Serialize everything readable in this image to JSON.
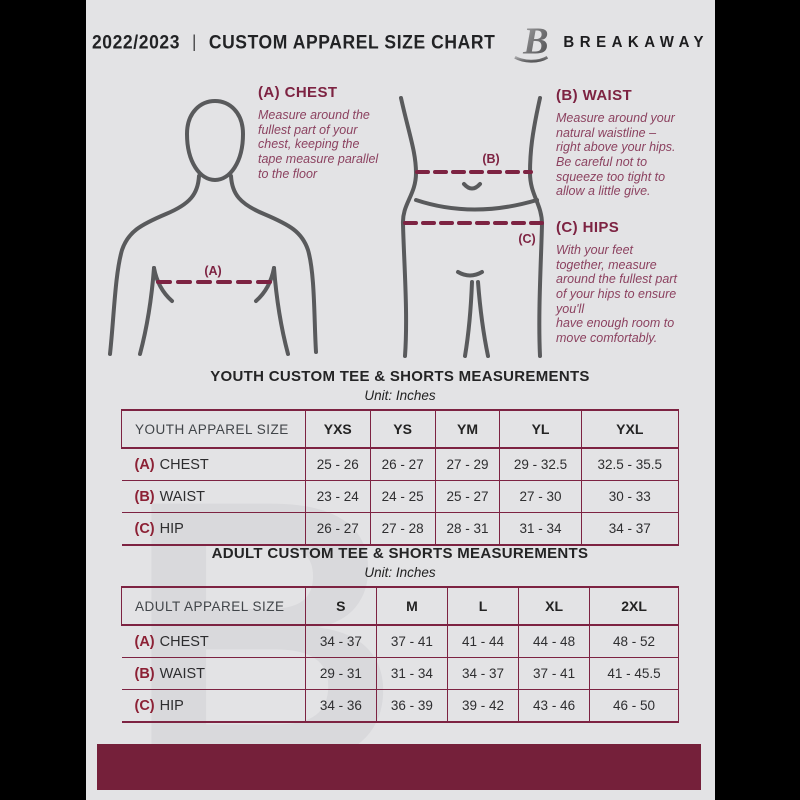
{
  "header": {
    "season": "2022/2023",
    "divider": "|",
    "title": "CUSTOM APPAREL SIZE CHART",
    "brand": "BREAKAWAY",
    "logo_letter": "B"
  },
  "guide": {
    "chest": {
      "heading": "(A) CHEST",
      "body": "Measure around the\nfullest part of your\nchest, keeping the\ntape measure parallel\nto the floor",
      "marker": "(A)"
    },
    "waist": {
      "heading": "(B) WAIST",
      "body": "Measure around your\nnatural waistline –\nright above your hips.\nBe careful not to\nsqueeze too tight to\nallow a little give.",
      "marker": "(B)"
    },
    "hips": {
      "heading": "(C) HIPS",
      "body": "With your feet\ntogether, measure\naround the fullest part\nof your hips to ensure\nyou'll\nhave enough room to\nmove comfortably.",
      "marker": "(C)"
    }
  },
  "youth": {
    "title": "YOUTH CUSTOM TEE & SHORTS MEASUREMENTS",
    "unit": "Unit: Inches",
    "header": [
      "YOUTH APPAREL SIZE",
      "YXS",
      "YS",
      "YM",
      "YL",
      "YXL"
    ],
    "rows": [
      {
        "prefix": "(A)",
        "label": "CHEST",
        "values": [
          "25 - 26",
          "26 - 27",
          "27 - 29",
          "29 - 32.5",
          "32.5 - 35.5"
        ]
      },
      {
        "prefix": "(B)",
        "label": "WAIST",
        "values": [
          "23 - 24",
          "24 - 25",
          "25 - 27",
          "27 - 30",
          "30 - 33"
        ]
      },
      {
        "prefix": "(C)",
        "label": "HIP",
        "values": [
          "26 - 27",
          "27 - 28",
          "28 - 31",
          "31 - 34",
          "34 - 37"
        ]
      }
    ]
  },
  "adult": {
    "title": "ADULT CUSTOM TEE & SHORTS MEASUREMENTS",
    "unit": "Unit: Inches",
    "header": [
      "ADULT APPAREL SIZE",
      "S",
      "M",
      "L",
      "XL",
      "2XL"
    ],
    "rows": [
      {
        "prefix": "(A)",
        "label": "CHEST",
        "values": [
          "34 - 37",
          "37 - 41",
          "41 - 44",
          "44 - 48",
          "48 - 52"
        ]
      },
      {
        "prefix": "(B)",
        "label": "WAIST",
        "values": [
          "29 - 31",
          "31 - 34",
          "34 - 37",
          "37 - 41",
          "41 - 45.5"
        ]
      },
      {
        "prefix": "(C)",
        "label": "HIP",
        "values": [
          "34 - 36",
          "36 - 39",
          "39 - 42",
          "43 - 46",
          "46 - 50"
        ]
      }
    ]
  },
  "watermark_letter": "B",
  "colors": {
    "accent_maroon": "#7d2342",
    "bottom_bar": "#75203a",
    "page_background": "#e3e3e5",
    "figure_outline": "#595a5c"
  }
}
